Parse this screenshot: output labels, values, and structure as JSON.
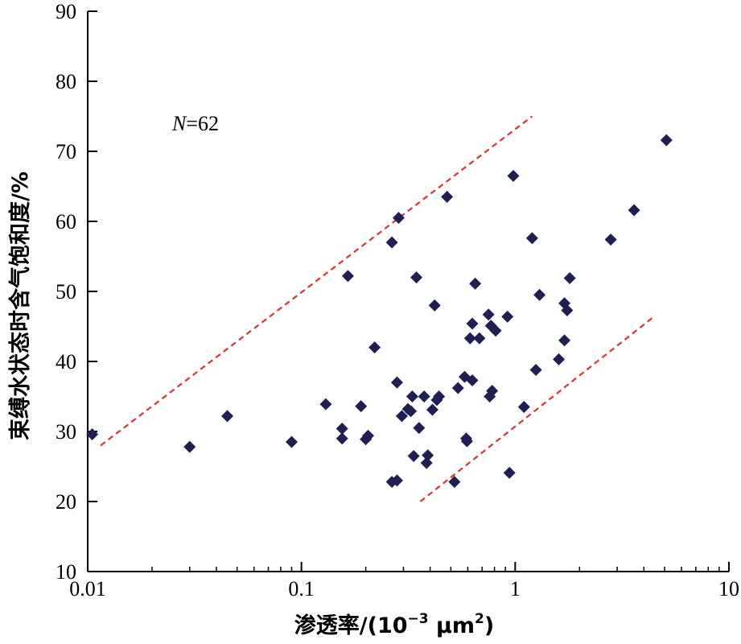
{
  "chart_data": {
    "type": "scatter",
    "xscale": "log",
    "xlim": [
      0.01,
      10
    ],
    "ylim": [
      10,
      90
    ],
    "xticks": [
      0.01,
      0.1,
      1,
      10
    ],
    "xtick_labels": [
      "0.01",
      "0.1",
      "1",
      "10"
    ],
    "yticks": [
      10,
      20,
      30,
      40,
      50,
      60,
      70,
      80,
      90
    ],
    "ytick_labels": [
      "10",
      "20",
      "30",
      "40",
      "50",
      "60",
      "70",
      "80",
      "90"
    ],
    "xlabel_main": "渗透率/(10",
    "xlabel_exp": "−3",
    "xlabel_unit": " μm",
    "xlabel_exp2": "2",
    "xlabel_close": ")",
    "ylabel": "束缚水状态时含气饱和度/%",
    "annotation_italic": "N",
    "annotation_rest": "=62",
    "grid": false,
    "marker": "diamond",
    "marker_color": "#1f1f54",
    "envelope_color": "#e03030",
    "envelope_lines": [
      {
        "x": [
          0.0115,
          1.2
        ],
        "y": [
          28,
          75
        ]
      },
      {
        "x": [
          0.36,
          4.5
        ],
        "y": [
          20,
          46.5
        ]
      }
    ],
    "points": [
      [
        0.0105,
        29.6
      ],
      [
        0.03,
        27.8
      ],
      [
        0.045,
        32.2
      ],
      [
        0.09,
        28.5
      ],
      [
        0.13,
        33.9
      ],
      [
        0.155,
        30.4
      ],
      [
        0.155,
        29.0
      ],
      [
        0.165,
        52.2
      ],
      [
        0.19,
        33.6
      ],
      [
        0.2,
        28.9
      ],
      [
        0.205,
        29.4
      ],
      [
        0.22,
        42.0
      ],
      [
        0.265,
        57.0
      ],
      [
        0.265,
        22.8
      ],
      [
        0.28,
        37.0
      ],
      [
        0.28,
        23.0
      ],
      [
        0.285,
        60.5
      ],
      [
        0.295,
        32.2
      ],
      [
        0.315,
        33.2
      ],
      [
        0.325,
        32.9
      ],
      [
        0.33,
        35.0
      ],
      [
        0.335,
        26.5
      ],
      [
        0.345,
        52.0
      ],
      [
        0.355,
        30.5
      ],
      [
        0.375,
        35.0
      ],
      [
        0.385,
        25.5
      ],
      [
        0.39,
        26.6
      ],
      [
        0.41,
        33.1
      ],
      [
        0.42,
        48.0
      ],
      [
        0.43,
        34.5
      ],
      [
        0.44,
        35.0
      ],
      [
        0.48,
        63.5
      ],
      [
        0.52,
        22.8
      ],
      [
        0.54,
        36.2
      ],
      [
        0.58,
        37.8
      ],
      [
        0.59,
        29.0
      ],
      [
        0.595,
        28.6
      ],
      [
        0.615,
        43.3
      ],
      [
        0.63,
        45.4
      ],
      [
        0.63,
        37.3
      ],
      [
        0.65,
        51.1
      ],
      [
        0.68,
        43.3
      ],
      [
        0.75,
        46.7
      ],
      [
        0.76,
        35.0
      ],
      [
        0.77,
        45.1
      ],
      [
        0.78,
        35.8
      ],
      [
        0.81,
        44.4
      ],
      [
        0.92,
        46.4
      ],
      [
        0.94,
        24.1
      ],
      [
        0.98,
        66.5
      ],
      [
        1.1,
        33.5
      ],
      [
        1.2,
        57.6
      ],
      [
        1.25,
        38.8
      ],
      [
        1.3,
        49.5
      ],
      [
        1.6,
        40.3
      ],
      [
        1.7,
        43.0
      ],
      [
        1.7,
        48.3
      ],
      [
        1.75,
        47.3
      ],
      [
        1.8,
        51.9
      ],
      [
        2.8,
        57.4
      ],
      [
        3.6,
        61.6
      ],
      [
        5.1,
        71.6
      ]
    ]
  }
}
